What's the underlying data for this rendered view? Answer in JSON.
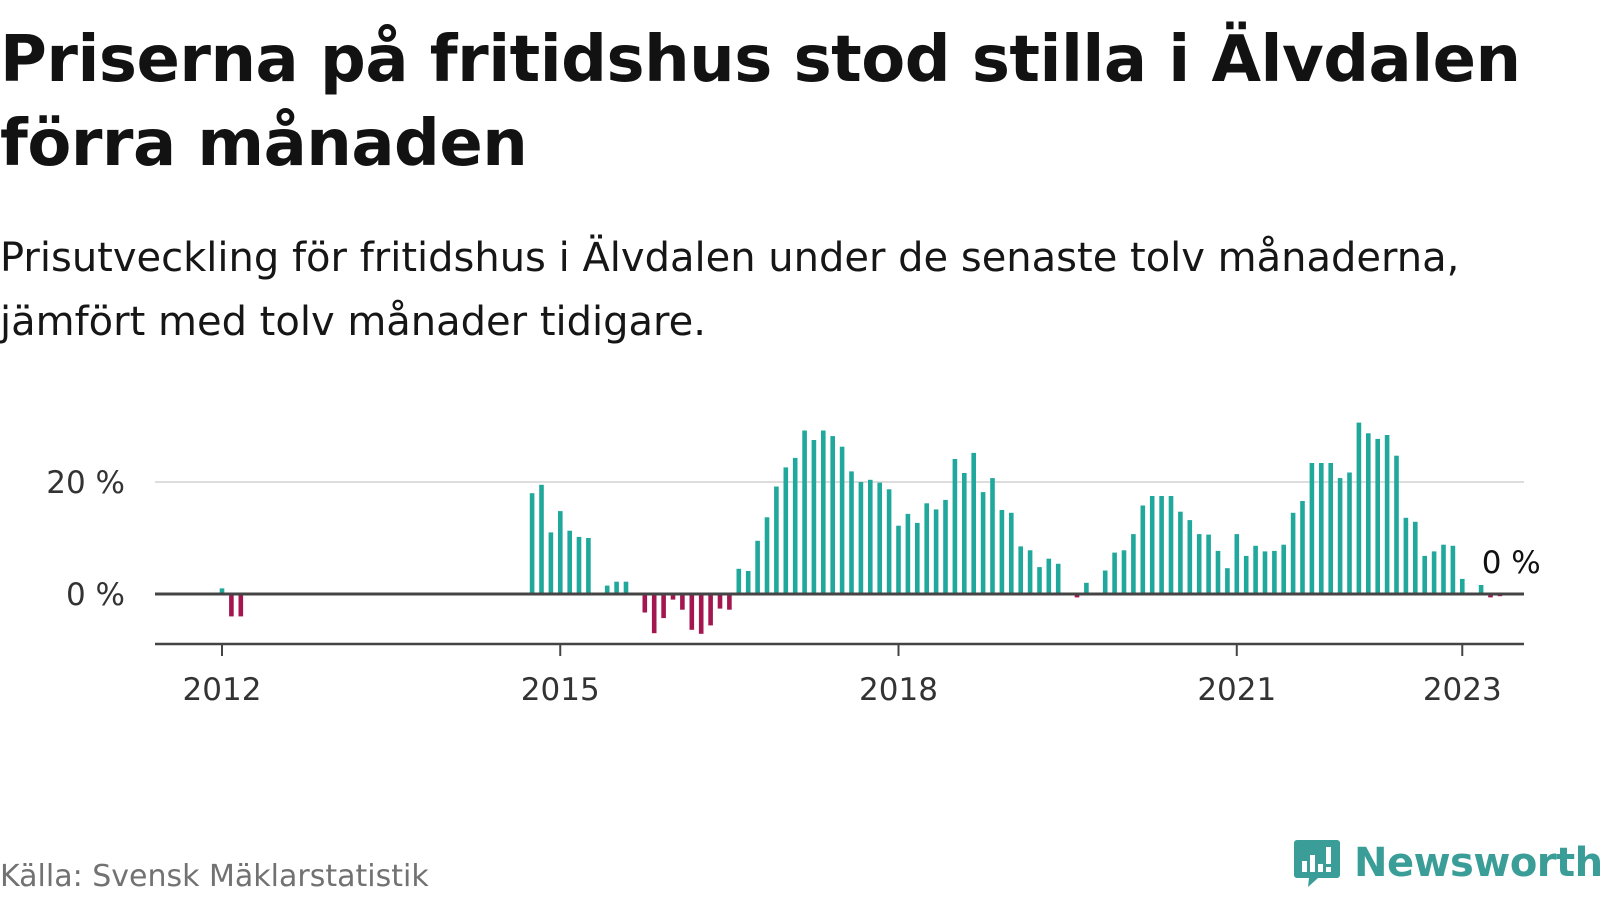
{
  "title": "Priserna på fritidshus stod stilla i Älvdalen förra månaden",
  "subtitle": "Prisutveckling för fritidshus i Älvdalen under de senaste tolv månaderna, jämfört med tolv månader tidigare.",
  "source": "Källa: Svensk Mäklarstatistik",
  "brand": {
    "name": "Newsworthy",
    "logo_icon": "newsworthy-chart-bubble-icon"
  },
  "colors": {
    "positive": "#1fa89b",
    "negative": "#a3164f",
    "gridline": "#dddddd",
    "axis": "#444444"
  },
  "chart_data": {
    "type": "bar",
    "x_axis": {
      "type": "date",
      "ticks": [
        "2012",
        "2015",
        "2018",
        "2021",
        "2023"
      ]
    },
    "y_axis": {
      "unit": "%",
      "ticks": [
        "0 %",
        "20 %"
      ],
      "ylim": [
        -9,
        31
      ]
    },
    "grid": true,
    "last_value_label": "0 %",
    "series": [
      {
        "values": [
          [
            "2012-01",
            1
          ],
          [
            "2012-02",
            -4
          ],
          [
            "2012-03",
            -4
          ],
          [
            "2014-10",
            18
          ],
          [
            "2014-11",
            19.5
          ],
          [
            "2014-12",
            11
          ],
          [
            "2015-01",
            14.8
          ],
          [
            "2015-02",
            11.3
          ],
          [
            "2015-03",
            10.2
          ],
          [
            "2015-04",
            10
          ],
          [
            "2015-06",
            1.5
          ],
          [
            "2015-07",
            2.2
          ],
          [
            "2015-08",
            2.2
          ],
          [
            "2015-10",
            -3.3
          ],
          [
            "2015-11",
            -7
          ],
          [
            "2015-12",
            -4.3
          ],
          [
            "2016-01",
            -1
          ],
          [
            "2016-02",
            -2.8
          ],
          [
            "2016-03",
            -6.4
          ],
          [
            "2016-04",
            -7.1
          ],
          [
            "2016-05",
            -5.6
          ],
          [
            "2016-06",
            -2.6
          ],
          [
            "2016-07",
            -2.8
          ],
          [
            "2016-08",
            4.5
          ],
          [
            "2016-09",
            4.1
          ],
          [
            "2016-10",
            9.5
          ],
          [
            "2016-11",
            13.7
          ],
          [
            "2016-12",
            19.2
          ],
          [
            "2017-01",
            22.6
          ],
          [
            "2017-02",
            24.3
          ],
          [
            "2017-03",
            29.2
          ],
          [
            "2017-04",
            27.5
          ],
          [
            "2017-05",
            29.2
          ],
          [
            "2017-06",
            28.2
          ],
          [
            "2017-07",
            26.3
          ],
          [
            "2017-08",
            21.9
          ],
          [
            "2017-09",
            20
          ],
          [
            "2017-10",
            20.4
          ],
          [
            "2017-11",
            19.9
          ],
          [
            "2017-12",
            18.7
          ],
          [
            "2018-01",
            12.2
          ],
          [
            "2018-02",
            14.3
          ],
          [
            "2018-03",
            12.7
          ],
          [
            "2018-04",
            16.2
          ],
          [
            "2018-05",
            15.1
          ],
          [
            "2018-06",
            16.8
          ],
          [
            "2018-07",
            24.1
          ],
          [
            "2018-08",
            21.6
          ],
          [
            "2018-09",
            25.2
          ],
          [
            "2018-10",
            18.2
          ],
          [
            "2018-11",
            20.7
          ],
          [
            "2018-12",
            15
          ],
          [
            "2019-01",
            14.5
          ],
          [
            "2019-02",
            8.5
          ],
          [
            "2019-03",
            7.8
          ],
          [
            "2019-04",
            4.8
          ],
          [
            "2019-05",
            6.3
          ],
          [
            "2019-06",
            5.4
          ],
          [
            "2019-08",
            -0.6
          ],
          [
            "2019-09",
            2
          ],
          [
            "2019-11",
            4.2
          ],
          [
            "2019-12",
            7.4
          ],
          [
            "2020-01",
            7.8
          ],
          [
            "2020-02",
            10.7
          ],
          [
            "2020-03",
            15.8
          ],
          [
            "2020-04",
            17.5
          ],
          [
            "2020-05",
            17.5
          ],
          [
            "2020-06",
            17.5
          ],
          [
            "2020-07",
            14.7
          ],
          [
            "2020-08",
            13.2
          ],
          [
            "2020-09",
            10.7
          ],
          [
            "2020-10",
            10.6
          ],
          [
            "2020-11",
            7.7
          ],
          [
            "2020-12",
            4.6
          ],
          [
            "2021-01",
            10.7
          ],
          [
            "2021-02",
            6.8
          ],
          [
            "2021-03",
            8.6
          ],
          [
            "2021-04",
            7.6
          ],
          [
            "2021-05",
            7.7
          ],
          [
            "2021-06",
            8.8
          ],
          [
            "2021-07",
            14.5
          ],
          [
            "2021-08",
            16.6
          ],
          [
            "2021-09",
            23.4
          ],
          [
            "2021-10",
            23.4
          ],
          [
            "2021-11",
            23.4
          ],
          [
            "2021-12",
            20.7
          ],
          [
            "2022-01",
            21.7
          ],
          [
            "2022-02",
            30.6
          ],
          [
            "2022-03",
            28.7
          ],
          [
            "2022-04",
            27.7
          ],
          [
            "2022-05",
            28.4
          ],
          [
            "2022-06",
            24.7
          ],
          [
            "2022-07",
            13.6
          ],
          [
            "2022-08",
            12.9
          ],
          [
            "2022-09",
            6.8
          ],
          [
            "2022-10",
            7.6
          ],
          [
            "2022-11",
            8.8
          ],
          [
            "2022-12",
            8.6
          ],
          [
            "2023-01",
            2.7
          ],
          [
            "2023-03",
            1.6
          ],
          [
            "2023-04",
            -0.6
          ],
          [
            "2023-05",
            -0.4
          ],
          [
            "2023-06",
            0
          ]
        ]
      }
    ]
  }
}
